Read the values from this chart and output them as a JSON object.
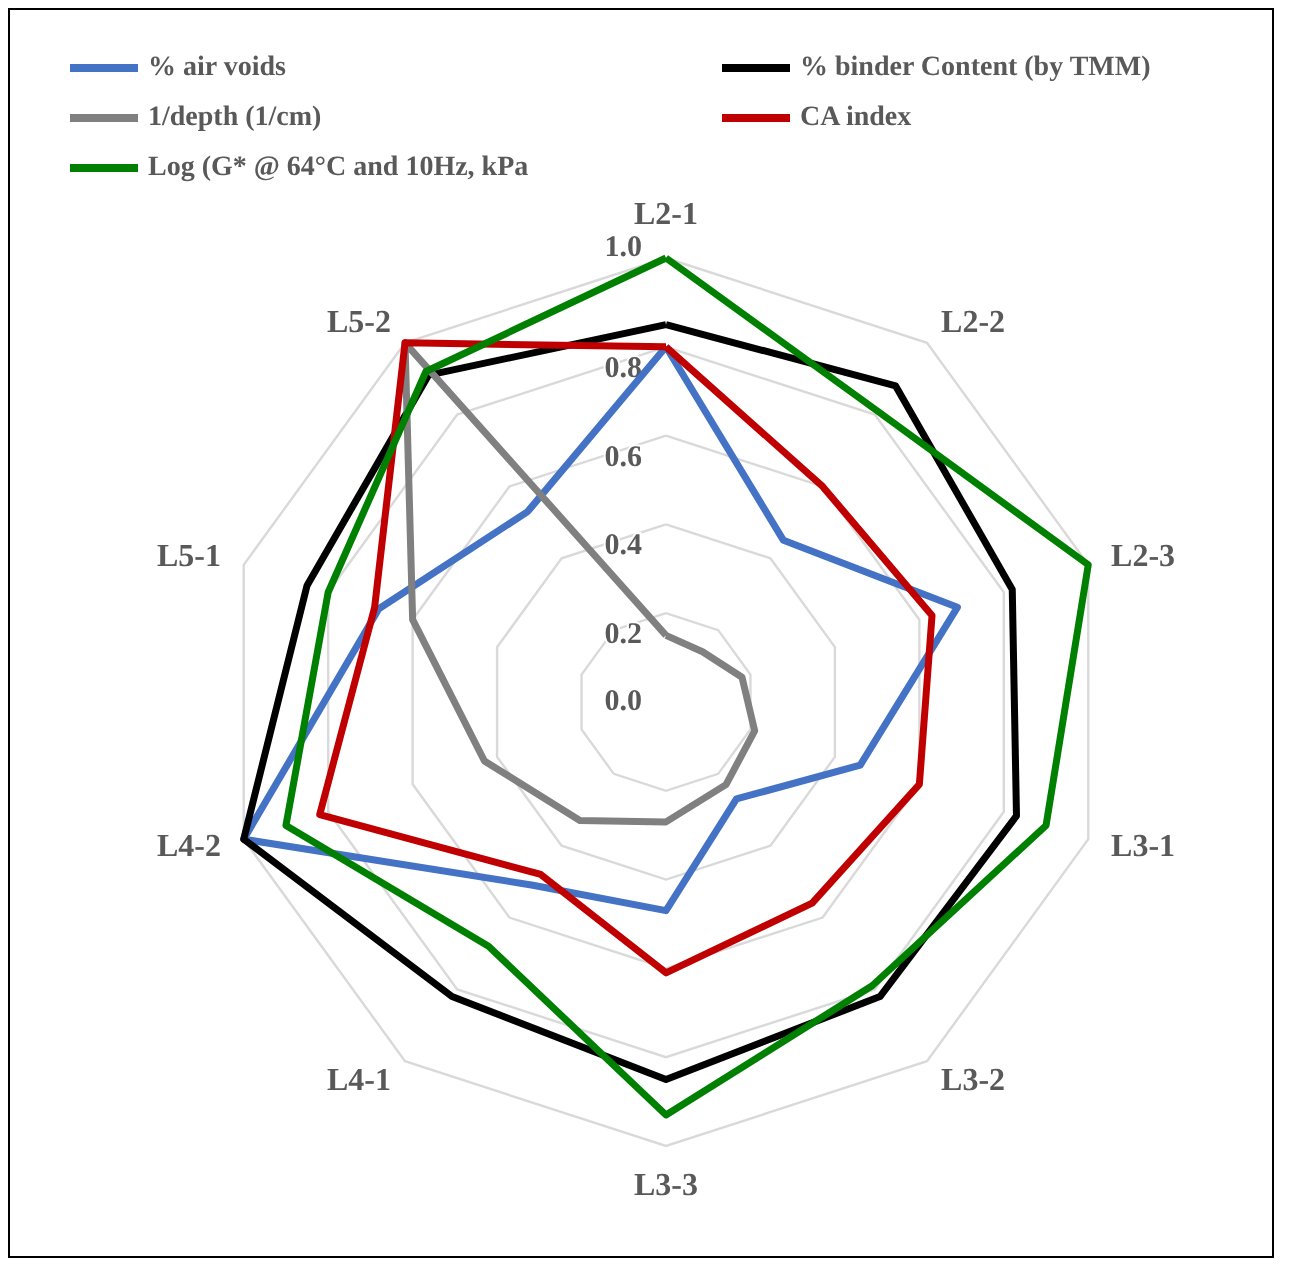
{
  "chart_data": {
    "type": "radar",
    "categories": [
      "L2-1",
      "L2-2",
      "L2-3",
      "L3-1",
      "L3-2",
      "L3-3",
      "L4-1",
      "L4-2",
      "L5-1",
      "L5-2"
    ],
    "ylim": [
      0,
      1
    ],
    "yticks": [
      {
        "value": 0,
        "label": "0.0"
      },
      {
        "value": 0.2,
        "label": "0.2"
      },
      {
        "value": 0.4,
        "label": "0.4"
      },
      {
        "value": 0.6,
        "label": "0.6"
      },
      {
        "value": 0.8,
        "label": "0.8"
      },
      {
        "value": 1,
        "label": "1.0"
      }
    ],
    "series": [
      {
        "name": "% air voids",
        "color": "#4472c4",
        "values": [
          0.8,
          0.45,
          0.69,
          0.46,
          0.27,
          0.47,
          0.51,
          1.0,
          0.68,
          0.53
        ]
      },
      {
        "name": "% binder Content (by TMM)",
        "color": "#000000",
        "values": [
          0.85,
          0.88,
          0.82,
          0.83,
          0.82,
          0.85,
          0.82,
          1.0,
          0.85,
          0.91
        ]
      },
      {
        "name": "1/depth (1/cm)",
        "color": "#808080",
        "values": [
          0.15,
          0.14,
          0.18,
          0.21,
          0.23,
          0.27,
          0.33,
          0.43,
          0.6,
          1.0
        ]
      },
      {
        "name": "CA index",
        "color": "#c00000",
        "values": [
          0.8,
          0.6,
          0.63,
          0.6,
          0.56,
          0.61,
          0.48,
          0.82,
          0.69,
          1.0
        ]
      },
      {
        "name": "Log (G* @ 64°C and 10Hz, kPa",
        "color": "#008000",
        "values": [
          1.0,
          0.81,
          1.0,
          0.9,
          0.79,
          0.93,
          0.68,
          0.9,
          0.8,
          0.92
        ]
      }
    ],
    "legend": "top",
    "grid": true,
    "marker": "none",
    "line_style": "solid"
  }
}
